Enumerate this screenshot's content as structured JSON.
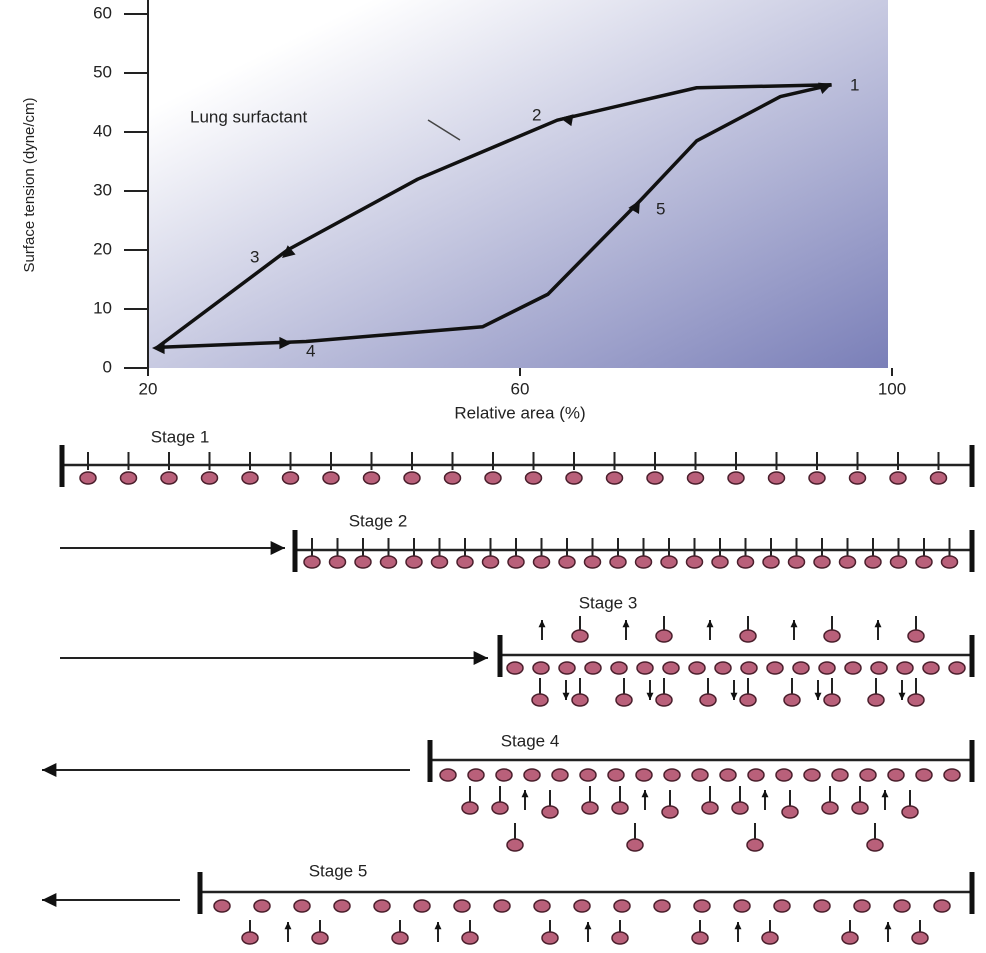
{
  "chart_data": {
    "type": "line",
    "y_label": "Surface tension (dyne/cm)",
    "x_label": "Relative area (%)",
    "x": [
      93.5,
      79,
      64,
      49,
      35,
      21,
      37,
      56,
      63,
      73,
      79,
      88,
      93.5
    ],
    "values": [
      48,
      47.5,
      42,
      32,
      20,
      3.5,
      4.5,
      7,
      12.5,
      28.5,
      38.5,
      46,
      48
    ],
    "color": "#111111",
    "xlim": [
      20,
      100
    ],
    "xticks": [
      20,
      60,
      100
    ],
    "ylim": [
      0,
      60
    ],
    "yticks": [
      0,
      10,
      20,
      30,
      40,
      50,
      60
    ],
    "annotations": [
      "1",
      "2",
      "3",
      "4",
      "5",
      "Lung surfactant"
    ]
  },
  "stages": [
    "Stage 1",
    "Stage 2",
    "Stage 3",
    "Stage 4",
    "Stage 5"
  ]
}
